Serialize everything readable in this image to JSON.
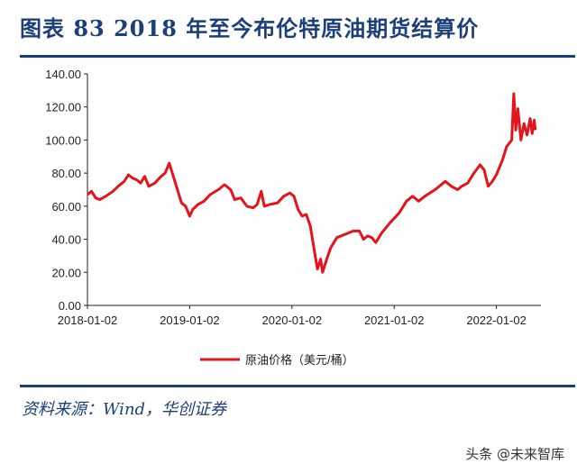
{
  "title": "图表 83   2018 年至今布伦特原油期货结算价",
  "source": "资料来源：Wind，华创证券",
  "watermark": "头条 @未来智库",
  "colors": {
    "series": "#e3141c",
    "title": "#1c3f7a",
    "rule": "#1c3f7a"
  },
  "chart_data": {
    "type": "line",
    "title": "2018 年至今布伦特原油期货结算价",
    "xlabel": "",
    "ylabel": "",
    "ylim": [
      0,
      140
    ],
    "xlim_years": [
      2018.0,
      2022.45
    ],
    "yticks": [
      "0.00",
      "20.00",
      "40.00",
      "60.00",
      "80.00",
      "100.00",
      "120.00",
      "140.00"
    ],
    "ytick_values": [
      0,
      20,
      40,
      60,
      80,
      100,
      120,
      140
    ],
    "xticks": [
      "2018-01-02",
      "2019-01-02",
      "2020-01-02",
      "2021-01-02",
      "2022-01-02"
    ],
    "xtick_values": [
      2018.0,
      2019.0,
      2020.0,
      2021.0,
      2022.0
    ],
    "legend": {
      "placement": "bottom-center"
    },
    "grid": false,
    "series": [
      {
        "name": "原油价格（美元/桶）",
        "x": [
          2018.0,
          2018.04,
          2018.08,
          2018.12,
          2018.18,
          2018.25,
          2018.3,
          2018.36,
          2018.4,
          2018.44,
          2018.48,
          2018.52,
          2018.56,
          2018.6,
          2018.66,
          2018.72,
          2018.76,
          2018.8,
          2018.84,
          2018.88,
          2018.92,
          2018.96,
          2019.0,
          2019.03,
          2019.08,
          2019.14,
          2019.2,
          2019.28,
          2019.34,
          2019.4,
          2019.44,
          2019.5,
          2019.56,
          2019.62,
          2019.66,
          2019.7,
          2019.73,
          2019.78,
          2019.86,
          2019.92,
          2019.98,
          2020.02,
          2020.06,
          2020.1,
          2020.14,
          2020.18,
          2020.22,
          2020.25,
          2020.28,
          2020.3,
          2020.34,
          2020.38,
          2020.44,
          2020.52,
          2020.6,
          2020.66,
          2020.7,
          2020.74,
          2020.78,
          2020.82,
          2020.88,
          2020.96,
          2021.05,
          2021.12,
          2021.18,
          2021.24,
          2021.3,
          2021.4,
          2021.5,
          2021.56,
          2021.62,
          2021.66,
          2021.72,
          2021.78,
          2021.84,
          2021.88,
          2021.92,
          2021.96,
          2022.0,
          2022.06,
          2022.1,
          2022.15,
          2022.17,
          2022.19,
          2022.21,
          2022.24,
          2022.27,
          2022.3,
          2022.33,
          2022.35,
          2022.37,
          2022.38
        ],
        "values": [
          67,
          69,
          65,
          64,
          66,
          69,
          72,
          75,
          79,
          77,
          76,
          74,
          78,
          72,
          74,
          78,
          80,
          86,
          78,
          70,
          62,
          60,
          54,
          58,
          61,
          63,
          67,
          70,
          73,
          70,
          64,
          65,
          60,
          59,
          61,
          69,
          60,
          61,
          62,
          66,
          68,
          66,
          58,
          54,
          55,
          48,
          33,
          22,
          28,
          20,
          28,
          35,
          41,
          43,
          45,
          45,
          40,
          42,
          41,
          38,
          44,
          50,
          56,
          63,
          66,
          63,
          66,
          70,
          75,
          72,
          70,
          72,
          74,
          80,
          85,
          82,
          72,
          75,
          79,
          88,
          96,
          100,
          128,
          106,
          119,
          100,
          110,
          103,
          113,
          104,
          112,
          106
        ]
      }
    ]
  }
}
